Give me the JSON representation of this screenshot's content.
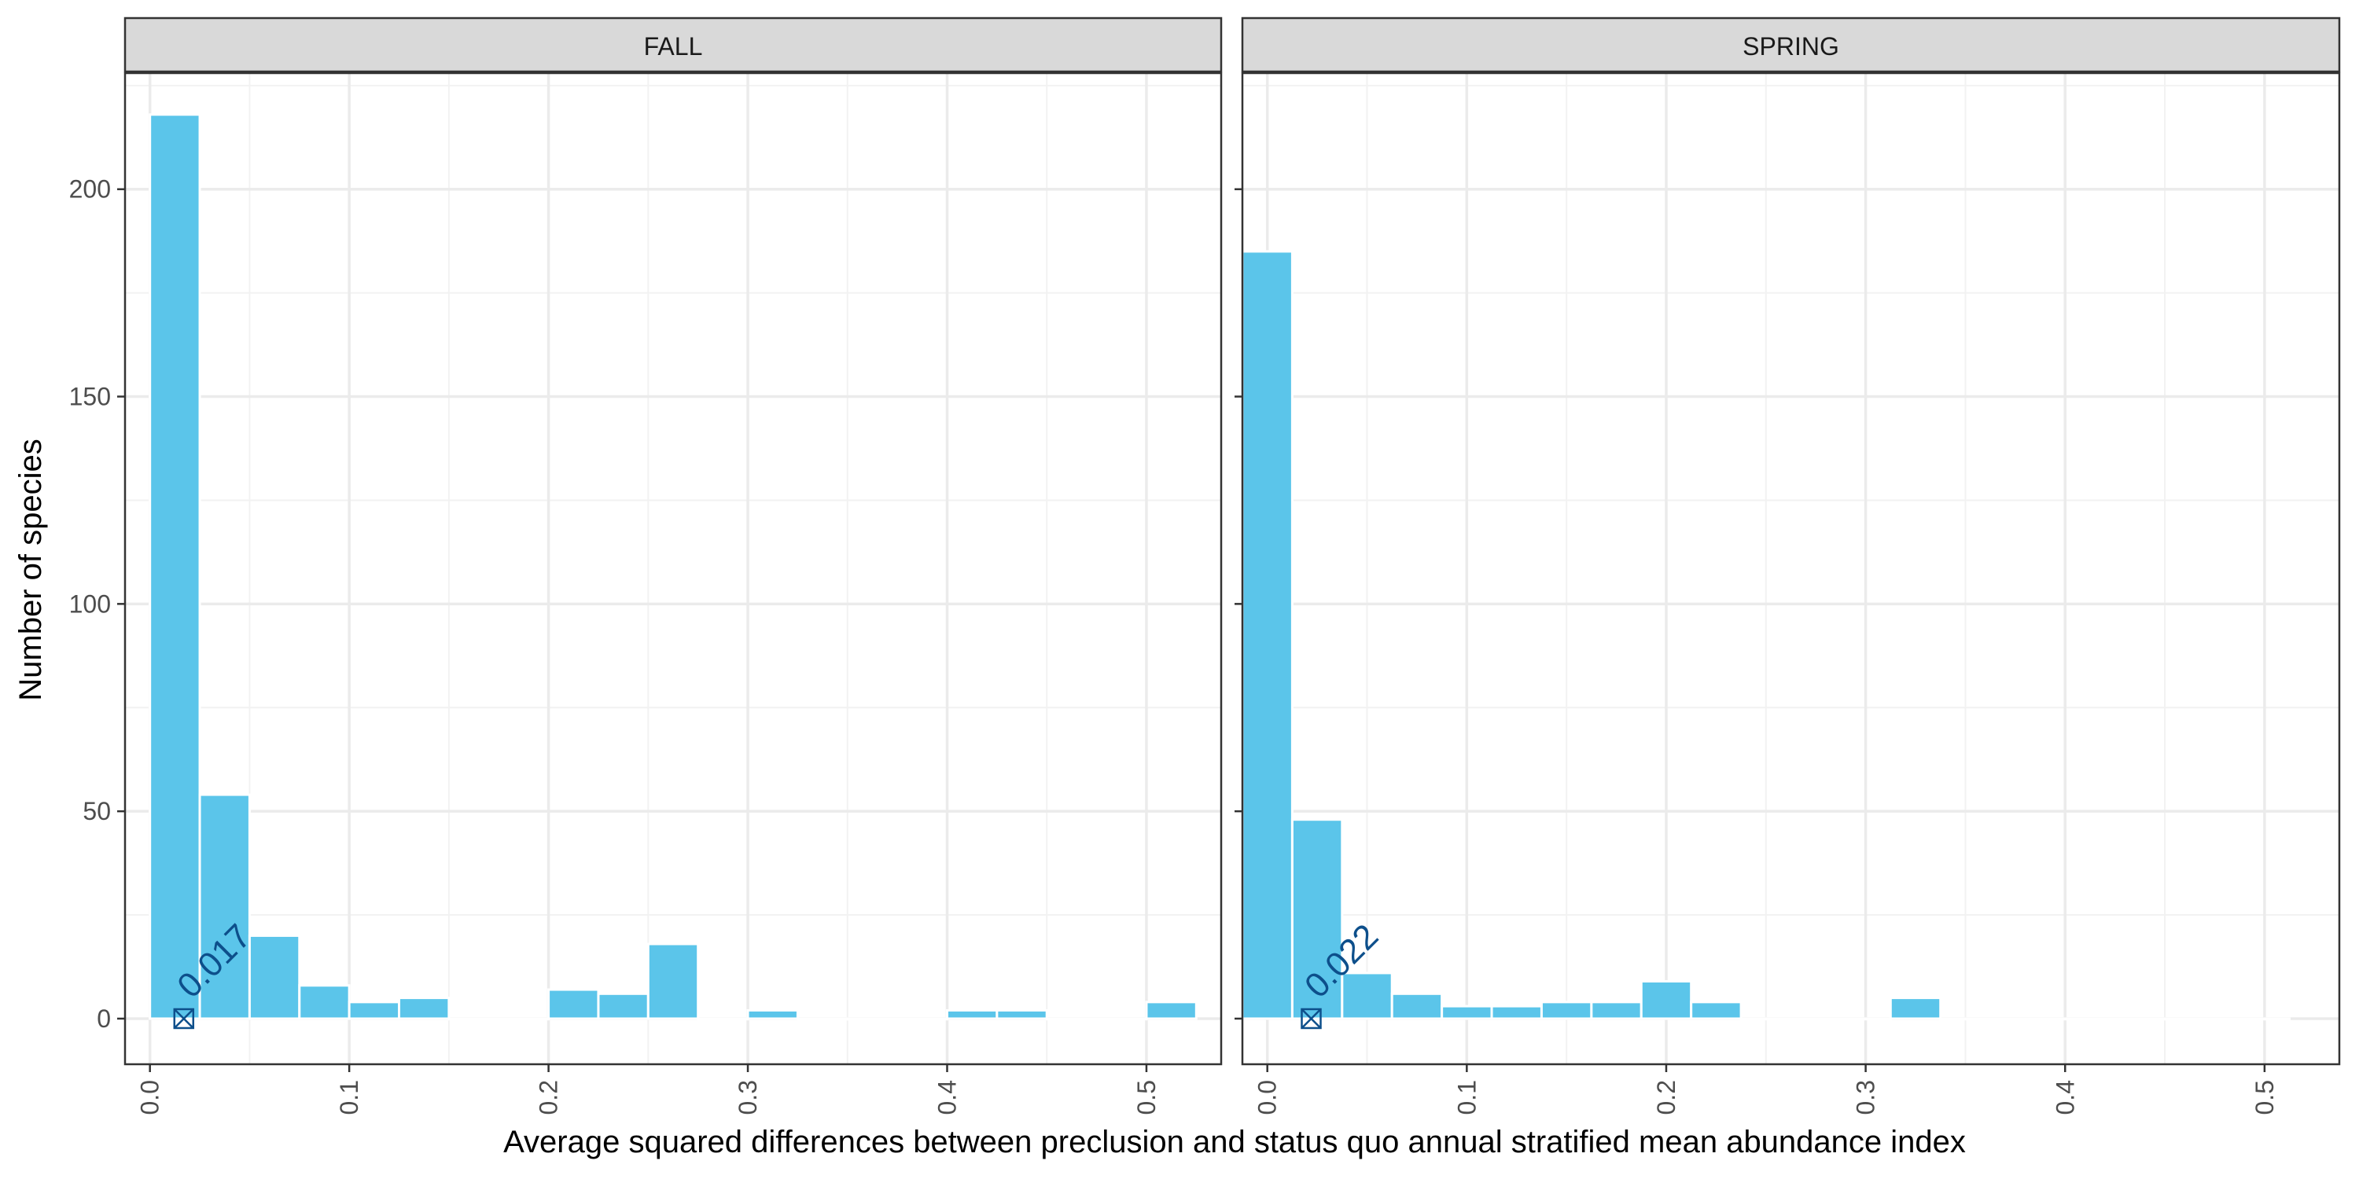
{
  "chart_data": {
    "type": "bar",
    "xlabel": "Average squared differences between preclusion and status quo annual stratified mean abundance index",
    "ylabel": "Number of species",
    "bin_width": 0.025,
    "xlim": [
      -0.0125,
      0.5375
    ],
    "ylim": [
      -11,
      228
    ],
    "x_ticks": [
      0.0,
      0.1,
      0.2,
      0.3,
      0.4,
      0.5
    ],
    "x_tick_labels": [
      "0.0",
      "0.1",
      "0.2",
      "0.3",
      "0.4",
      "0.5"
    ],
    "y_ticks": [
      0,
      50,
      100,
      150,
      200
    ],
    "y_tick_labels": [
      "0",
      "50",
      "100",
      "150",
      "200"
    ],
    "bar_color": "#5BC5EA",
    "marker_color": "#0D4F8B",
    "panels": [
      {
        "strip": "FALL",
        "bins": [
          0.0125,
          0.0375,
          0.0625,
          0.0875,
          0.1125,
          0.1375,
          0.1625,
          0.1875,
          0.2125,
          0.2375,
          0.2625,
          0.2875,
          0.3125,
          0.3375,
          0.3625,
          0.3875,
          0.4125,
          0.4375,
          0.4625,
          0.4875,
          0.5125
        ],
        "counts": [
          218,
          54,
          20,
          8,
          4,
          5,
          0,
          0,
          7,
          6,
          18,
          0,
          2,
          0,
          0,
          0,
          2,
          2,
          0,
          0,
          4
        ],
        "median": 0.017,
        "median_label": "0.017"
      },
      {
        "strip": "SPRING",
        "bins": [
          0.0,
          0.025,
          0.05,
          0.075,
          0.1,
          0.125,
          0.15,
          0.175,
          0.2,
          0.225,
          0.25,
          0.275,
          0.3,
          0.325,
          0.35,
          0.375,
          0.4,
          0.425,
          0.45,
          0.475,
          0.5
        ],
        "counts": [
          185,
          48,
          11,
          6,
          3,
          3,
          4,
          4,
          9,
          4,
          0,
          0,
          0,
          5,
          0,
          0,
          0,
          0,
          0,
          0,
          0
        ],
        "median": 0.022,
        "median_label": "0.022"
      }
    ]
  }
}
